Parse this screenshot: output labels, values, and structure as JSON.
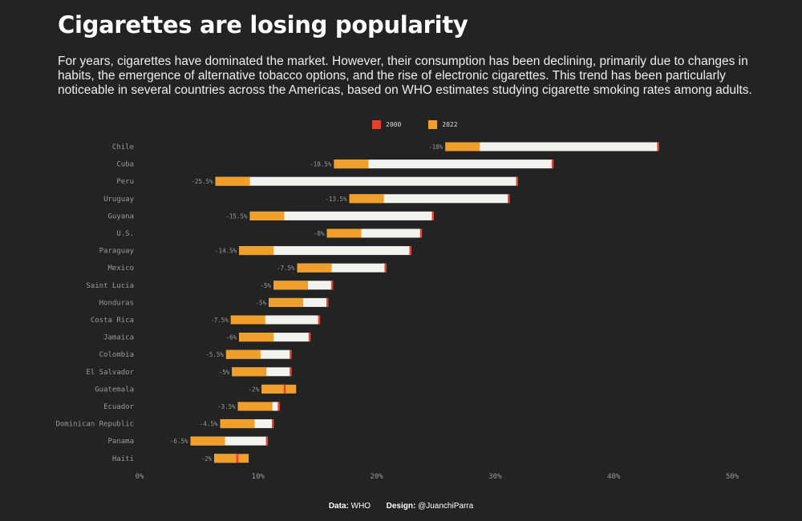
{
  "title": "Cigarettes are losing popularity",
  "subtitle": "For years, cigarettes have dominated the market. However, their consumption has been declining, primarily due to changes in habits, the emergence of alternative tobacco options, and the rise of electronic cigarettes. This trend has been particularly noticeable in several countries across the Americas, based on WHO estimates studying cigarette smoking rates among adults.",
  "legend": {
    "item_2000": "2000",
    "item_2022": "2022"
  },
  "footer": {
    "data_label": "Data:",
    "data_value": "WHO",
    "design_label": "Design:",
    "design_value": "@JuanchiParra"
  },
  "colors": {
    "background": "#232323",
    "bar_2000": "#e8402f",
    "bar_2022": "#f0a02a",
    "bar_gap": "#f2f2ee",
    "label": "#9a9a9a"
  },
  "chart_data": {
    "type": "bar",
    "orientation": "horizontal",
    "title": "Cigarettes are losing popularity",
    "xlabel": "",
    "ylabel": "",
    "xlim": [
      0,
      50
    ],
    "xticks": [
      "0%",
      "10%",
      "20%",
      "30%",
      "40%",
      "50%"
    ],
    "grid": false,
    "legend_position": "top",
    "series": [
      {
        "name": "2000",
        "values": [
          43.8,
          34.9,
          31.9,
          31.2,
          24.8,
          23.8,
          22.9,
          20.8,
          16.3,
          15.9,
          15.2,
          14.4,
          12.8,
          12.8,
          12.3,
          11.8,
          11.3,
          10.8,
          8.3
        ]
      },
      {
        "name": "2022",
        "values": [
          25.8,
          16.4,
          6.4,
          17.7,
          9.3,
          15.8,
          8.4,
          13.3,
          11.3,
          10.9,
          7.7,
          8.4,
          7.3,
          7.8,
          10.3,
          8.3,
          6.8,
          4.3,
          6.3
        ]
      }
    ],
    "categories": [
      "Chile",
      "Cuba",
      "Peru",
      "Uruguay",
      "Guyana",
      "U.S.",
      "Paraguay",
      "Mexico",
      "Saint Lucia",
      "Honduras",
      "Costa Rica",
      "Jamaica",
      "Colombia",
      "El Salvador",
      "Guatemala",
      "Ecuador",
      "Dominican Republic",
      "Panama",
      "Haiti"
    ],
    "change_labels": [
      "-18%",
      "-18.5%",
      "-25.5%",
      "-13.5%",
      "-15.5%",
      "-8%",
      "-14.5%",
      "-7.5%",
      "-5%",
      "-5%",
      "-7.5%",
      "-6%",
      "-5.5%",
      "-5%",
      "-2%",
      "-3.5%",
      "-4.5%",
      "-6.5%",
      "-2%"
    ]
  }
}
